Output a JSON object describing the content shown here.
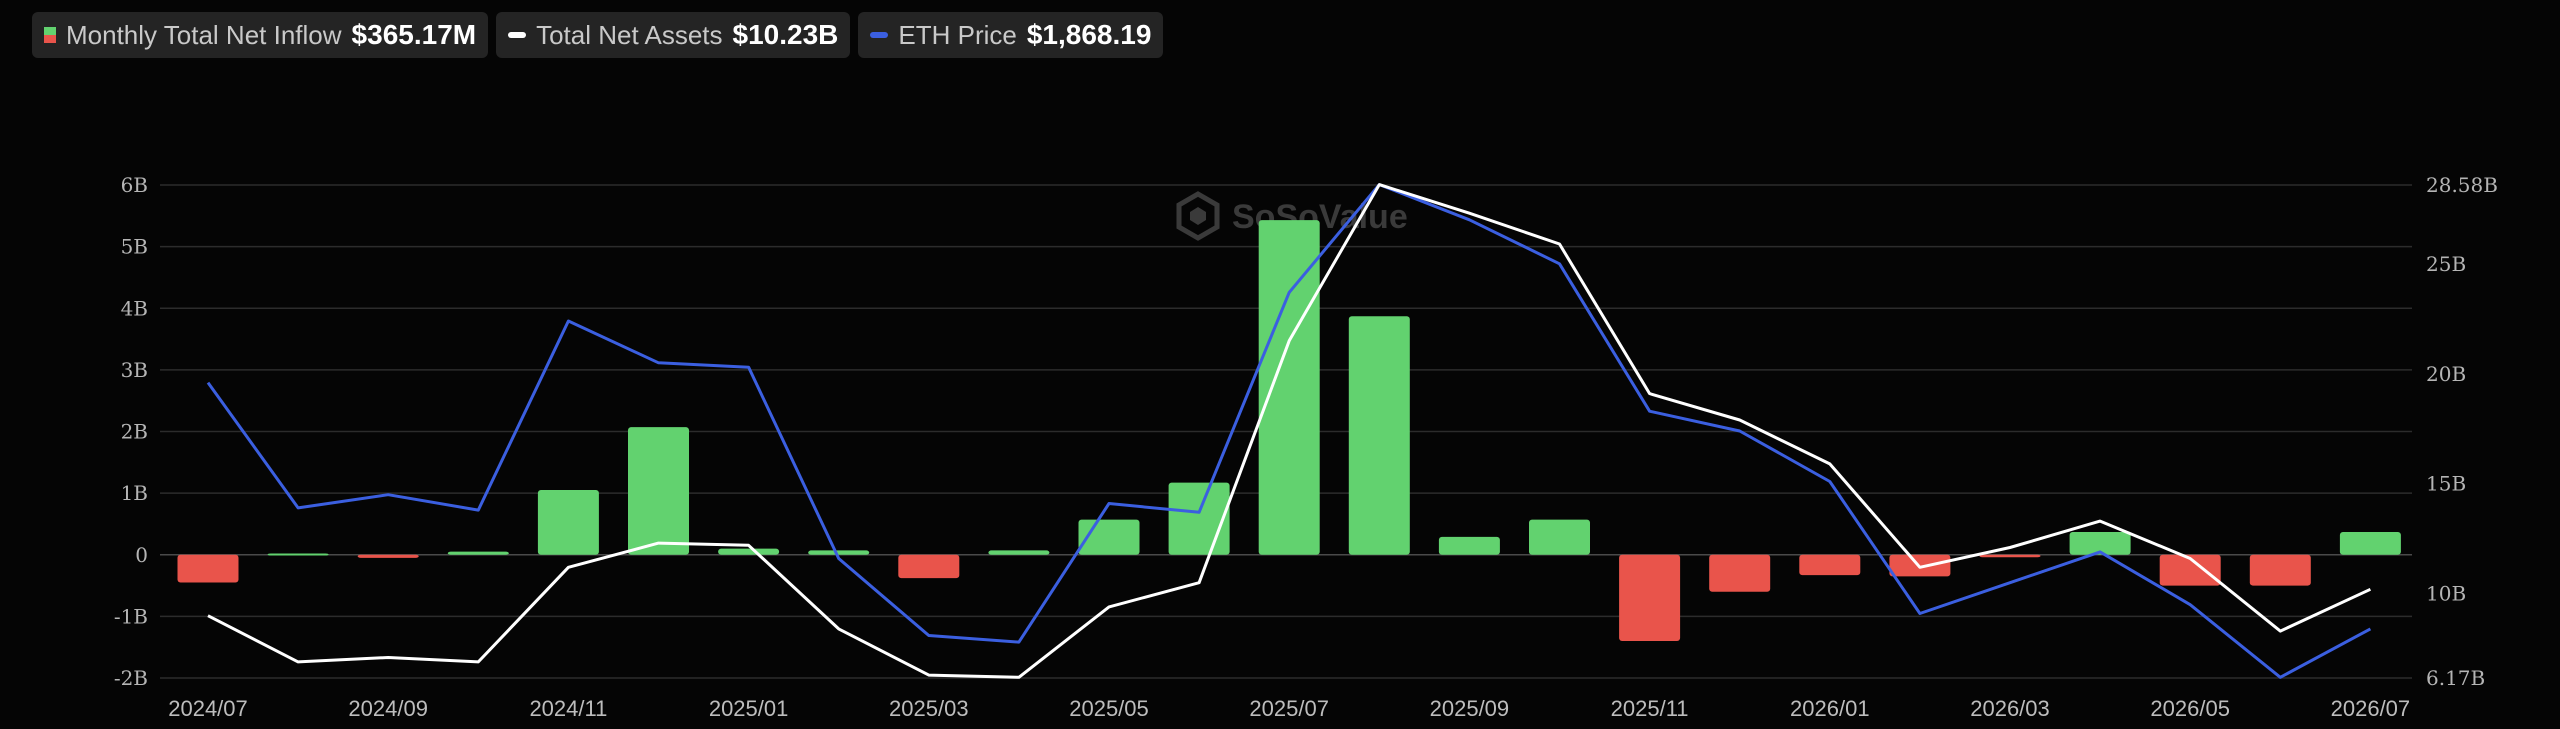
{
  "legend": {
    "inflow": {
      "label": "Monthly Total Net Inflow",
      "value": "$365.17M",
      "color_pos": "#62d26f",
      "color_neg": "#e9544b"
    },
    "assets": {
      "label": "Total Net Assets",
      "value": "$10.23B",
      "color": "#ffffff"
    },
    "eth": {
      "label": "ETH Price",
      "value": "$1,868.19",
      "color": "#3b5fe0"
    }
  },
  "watermark": "SoSoValue",
  "chart_data": {
    "type": "bar",
    "months": [
      "2024/07",
      "2024/08",
      "2024/09",
      "2024/10",
      "2024/11",
      "2024/12",
      "2025/01",
      "2025/02",
      "2025/03",
      "2025/04",
      "2025/05",
      "2025/06",
      "2025/07",
      "2025/08",
      "2025/09",
      "2025/10",
      "2025/11",
      "2025/12",
      "2026/01",
      "2026/02",
      "2026/03",
      "2026/04",
      "2026/05",
      "2026/06",
      "2026/07"
    ],
    "x_tick_labels": [
      "2024/07",
      "2024/09",
      "2024/11",
      "2025/01",
      "2025/03",
      "2025/05",
      "2025/07",
      "2025/09",
      "2025/11",
      "2026/01",
      "2026/03",
      "2026/05",
      "2026/07"
    ],
    "left_axis": {
      "ticks": [
        "6B",
        "5B",
        "4B",
        "3B",
        "2B",
        "1B",
        "0",
        "-1B",
        "-2B"
      ],
      "range": [
        -2,
        6
      ],
      "unit": "B"
    },
    "right_axis": {
      "ticks": [
        "28.58B",
        "25B",
        "20B",
        "15B",
        "10B",
        "6.17B"
      ],
      "range": [
        6.17,
        28.58
      ],
      "unit": "B"
    },
    "series": [
      {
        "name": "Monthly Total Net Inflow",
        "type": "bar",
        "axis": "left",
        "values": [
          -0.45,
          0.02,
          -0.05,
          0.05,
          1.05,
          2.07,
          0.1,
          0.07,
          -0.38,
          0.07,
          0.57,
          1.17,
          5.43,
          3.87,
          0.29,
          0.57,
          -1.4,
          -0.6,
          -0.33,
          -0.35,
          -0.04,
          0.37,
          -0.5,
          -0.5,
          0.37
        ]
      },
      {
        "name": "Total Net Assets",
        "type": "line",
        "axis": "right",
        "values": [
          9.0,
          6.9,
          7.1,
          6.9,
          11.2,
          12.3,
          12.2,
          8.4,
          6.3,
          6.2,
          9.4,
          10.5,
          21.5,
          28.6,
          27.3,
          25.9,
          19.1,
          17.9,
          15.9,
          11.2,
          12.1,
          13.3,
          11.6,
          8.3,
          10.2
        ]
      },
      {
        "name": "ETH Price",
        "type": "line",
        "axis": "right",
        "values_scaled": [
          19.6,
          13.9,
          14.5,
          13.8,
          22.4,
          20.5,
          20.3,
          11.6,
          8.1,
          7.8,
          14.1,
          13.7,
          23.7,
          28.6,
          27.0,
          25.0,
          18.3,
          17.4,
          15.1,
          9.1,
          10.5,
          11.9,
          9.5,
          6.2,
          8.4
        ]
      }
    ],
    "grid": true,
    "legend_position": "top-left"
  }
}
